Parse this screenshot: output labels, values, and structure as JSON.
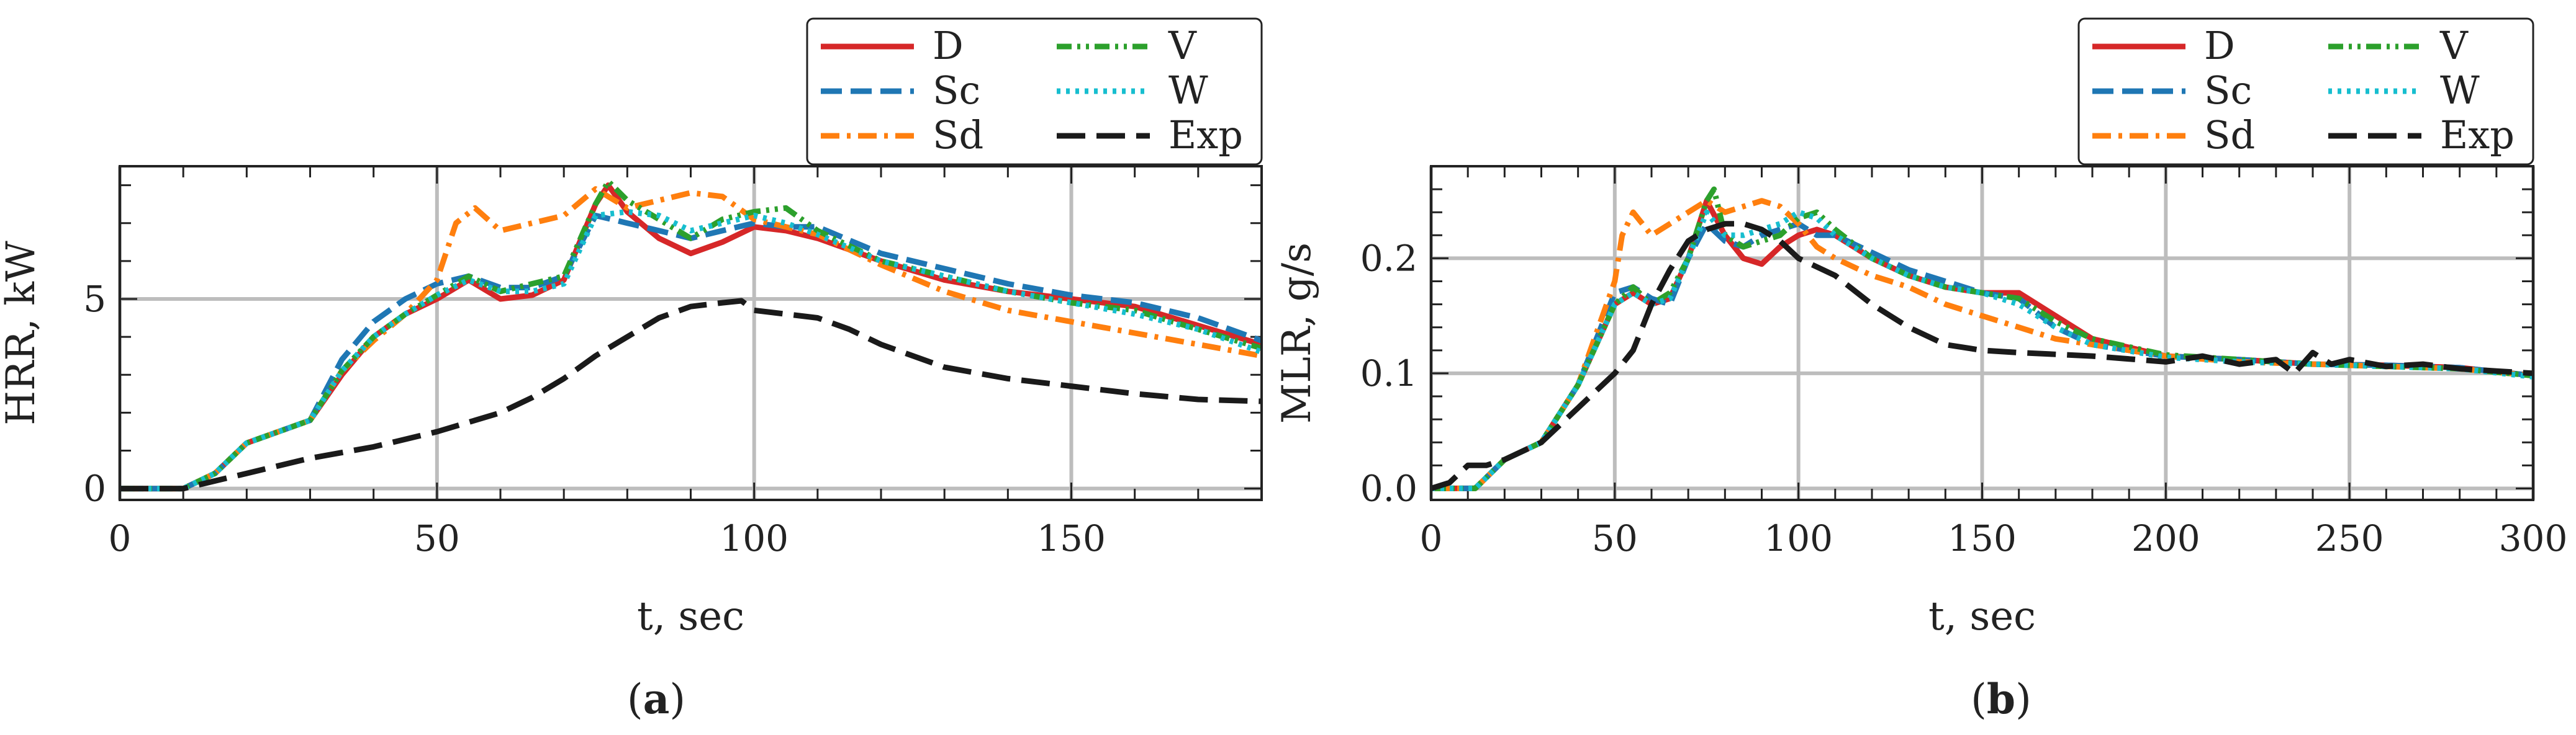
{
  "figure": {
    "panel_labels": [
      "a",
      "b"
    ]
  },
  "chart_data": [
    {
      "type": "line",
      "panel": "a",
      "title": "",
      "xlabel": "t, sec",
      "ylabel": "HRR, kW",
      "xlim": [
        0,
        180
      ],
      "ylim": [
        -0.3,
        8.5
      ],
      "xticks": [
        0,
        50,
        100,
        150
      ],
      "xtick_labels": [
        "0",
        "50",
        "100",
        "150"
      ],
      "yticks": [
        0,
        5
      ],
      "ytick_labels": [
        "0",
        "5"
      ],
      "grid": true,
      "legend_position": "top-right",
      "series": [
        {
          "name": "D",
          "color": "#d62728",
          "dash": "solid",
          "x": [
            0,
            10,
            15,
            20,
            25,
            30,
            35,
            40,
            45,
            50,
            55,
            60,
            65,
            70,
            75,
            77,
            80,
            85,
            90,
            95,
            100,
            105,
            110,
            120,
            130,
            140,
            150,
            160,
            170,
            180
          ],
          "y": [
            0,
            0,
            0.4,
            1.2,
            1.5,
            1.8,
            3.0,
            4.0,
            4.6,
            5.0,
            5.5,
            5.0,
            5.1,
            5.5,
            7.5,
            8.0,
            7.3,
            6.6,
            6.2,
            6.5,
            6.9,
            6.8,
            6.6,
            6.0,
            5.5,
            5.2,
            5.0,
            4.8,
            4.3,
            3.8
          ]
        },
        {
          "name": "Sc",
          "color": "#1f77b4",
          "dash": "dashed",
          "x": [
            0,
            10,
            15,
            20,
            25,
            30,
            35,
            40,
            45,
            50,
            55,
            60,
            65,
            70,
            75,
            80,
            85,
            90,
            95,
            100,
            105,
            110,
            120,
            130,
            140,
            150,
            160,
            170,
            180
          ],
          "y": [
            0,
            0,
            0.4,
            1.2,
            1.5,
            1.8,
            3.4,
            4.4,
            5.0,
            5.4,
            5.6,
            5.3,
            5.3,
            5.6,
            7.2,
            7.0,
            6.8,
            6.6,
            6.8,
            7.0,
            6.9,
            6.9,
            6.2,
            5.8,
            5.4,
            5.1,
            4.9,
            4.5,
            3.9
          ]
        },
        {
          "name": "Sd",
          "color": "#ff7f0e",
          "dash": "dashdot",
          "x": [
            0,
            10,
            15,
            20,
            25,
            30,
            35,
            40,
            45,
            50,
            53,
            56,
            60,
            65,
            70,
            75,
            80,
            85,
            90,
            95,
            100,
            105,
            110,
            120,
            130,
            140,
            150,
            160,
            170,
            180
          ],
          "y": [
            0,
            0,
            0.4,
            1.2,
            1.5,
            1.8,
            3.1,
            3.9,
            4.6,
            5.5,
            7.0,
            7.4,
            6.8,
            7.0,
            7.2,
            7.9,
            7.4,
            7.6,
            7.8,
            7.7,
            7.1,
            6.9,
            6.7,
            5.9,
            5.2,
            4.7,
            4.4,
            4.1,
            3.8,
            3.5
          ]
        },
        {
          "name": "V",
          "color": "#2ca02c",
          "dash": "dashdotdot",
          "x": [
            0,
            10,
            15,
            20,
            25,
            30,
            35,
            40,
            45,
            50,
            55,
            60,
            65,
            70,
            75,
            77,
            80,
            85,
            90,
            95,
            100,
            105,
            110,
            120,
            130,
            140,
            150,
            160,
            170,
            180
          ],
          "y": [
            0,
            0,
            0.4,
            1.2,
            1.5,
            1.8,
            3.1,
            4.0,
            4.6,
            5.1,
            5.6,
            5.2,
            5.4,
            5.6,
            7.5,
            8.1,
            7.6,
            7.1,
            6.6,
            7.1,
            7.3,
            7.4,
            6.8,
            6.0,
            5.6,
            5.2,
            4.9,
            4.7,
            4.2,
            3.7
          ]
        },
        {
          "name": "W",
          "color": "#17becf",
          "dash": "dotted",
          "x": [
            0,
            10,
            15,
            20,
            25,
            30,
            35,
            40,
            45,
            50,
            55,
            60,
            65,
            70,
            75,
            80,
            85,
            90,
            95,
            100,
            105,
            110,
            120,
            130,
            140,
            150,
            160,
            170,
            180
          ],
          "y": [
            0,
            0,
            0.4,
            1.2,
            1.5,
            1.8,
            3.1,
            4.0,
            4.6,
            5.1,
            5.5,
            5.2,
            5.2,
            5.4,
            7.2,
            7.3,
            7.2,
            6.8,
            7.0,
            7.2,
            7.0,
            6.7,
            6.0,
            5.6,
            5.2,
            4.9,
            4.6,
            4.2,
            3.6
          ]
        },
        {
          "name": "Exp",
          "color": "#1a1a1a",
          "dash": "longdash",
          "x": [
            0,
            10,
            15,
            20,
            30,
            40,
            50,
            60,
            65,
            70,
            75,
            80,
            85,
            90,
            95,
            98,
            100,
            105,
            110,
            115,
            120,
            130,
            140,
            150,
            160,
            170,
            180
          ],
          "y": [
            0,
            0,
            0.2,
            0.4,
            0.8,
            1.1,
            1.5,
            2.0,
            2.4,
            2.9,
            3.5,
            4.0,
            4.5,
            4.8,
            4.9,
            4.95,
            4.7,
            4.6,
            4.5,
            4.2,
            3.8,
            3.2,
            2.9,
            2.7,
            2.5,
            2.35,
            2.3
          ]
        }
      ]
    },
    {
      "type": "line",
      "panel": "b",
      "title": "",
      "xlabel": "t, sec",
      "ylabel": "MLR, g/s",
      "xlim": [
        0,
        300
      ],
      "ylim": [
        -0.01,
        0.28
      ],
      "xticks": [
        0,
        50,
        100,
        150,
        200,
        250,
        300
      ],
      "xtick_labels": [
        "0",
        "50",
        "100",
        "150",
        "200",
        "250",
        "300"
      ],
      "yticks": [
        0.0,
        0.1,
        0.2
      ],
      "ytick_labels": [
        "0.0",
        "0.1",
        "0.2"
      ],
      "grid": true,
      "legend_position": "top-right",
      "series": [
        {
          "name": "D",
          "color": "#d62728",
          "dash": "solid",
          "x": [
            0,
            12,
            20,
            30,
            40,
            50,
            55,
            60,
            65,
            70,
            75,
            80,
            85,
            90,
            95,
            100,
            105,
            110,
            120,
            130,
            140,
            150,
            160,
            170,
            180,
            200,
            220,
            240,
            260,
            280,
            300
          ],
          "y": [
            0,
            0,
            0.025,
            0.04,
            0.09,
            0.16,
            0.17,
            0.16,
            0.165,
            0.2,
            0.25,
            0.22,
            0.2,
            0.195,
            0.21,
            0.22,
            0.225,
            0.22,
            0.2,
            0.185,
            0.175,
            0.17,
            0.17,
            0.15,
            0.13,
            0.115,
            0.112,
            0.108,
            0.107,
            0.105,
            0.098
          ]
        },
        {
          "name": "Sc",
          "color": "#1f77b4",
          "dash": "dashed",
          "x": [
            0,
            12,
            20,
            30,
            40,
            50,
            55,
            60,
            65,
            70,
            75,
            80,
            85,
            90,
            95,
            100,
            105,
            110,
            120,
            130,
            140,
            150,
            160,
            170,
            180,
            200,
            220,
            240,
            260,
            280,
            300
          ],
          "y": [
            0,
            0,
            0.025,
            0.04,
            0.09,
            0.17,
            0.175,
            0.165,
            0.16,
            0.2,
            0.23,
            0.215,
            0.21,
            0.22,
            0.225,
            0.23,
            0.22,
            0.22,
            0.205,
            0.19,
            0.18,
            0.17,
            0.165,
            0.14,
            0.125,
            0.115,
            0.112,
            0.108,
            0.107,
            0.105,
            0.098
          ]
        },
        {
          "name": "Sd",
          "color": "#ff7f0e",
          "dash": "dashdot",
          "x": [
            0,
            12,
            20,
            30,
            40,
            50,
            52,
            55,
            60,
            65,
            70,
            75,
            80,
            85,
            90,
            95,
            100,
            105,
            110,
            120,
            130,
            140,
            150,
            160,
            170,
            180,
            200,
            220,
            240,
            260,
            280,
            300
          ],
          "y": [
            0,
            0,
            0.025,
            0.04,
            0.09,
            0.18,
            0.22,
            0.24,
            0.22,
            0.23,
            0.24,
            0.25,
            0.24,
            0.245,
            0.25,
            0.245,
            0.23,
            0.21,
            0.2,
            0.185,
            0.175,
            0.16,
            0.15,
            0.14,
            0.13,
            0.125,
            0.115,
            0.11,
            0.108,
            0.106,
            0.104,
            0.098
          ]
        },
        {
          "name": "V",
          "color": "#2ca02c",
          "dash": "dashdotdot",
          "x": [
            0,
            12,
            20,
            30,
            40,
            50,
            55,
            60,
            65,
            70,
            75,
            77,
            80,
            85,
            90,
            95,
            100,
            105,
            110,
            120,
            130,
            140,
            150,
            160,
            170,
            180,
            200,
            220,
            240,
            260,
            280,
            300
          ],
          "y": [
            0,
            0,
            0.025,
            0.04,
            0.09,
            0.16,
            0.175,
            0.16,
            0.17,
            0.2,
            0.25,
            0.26,
            0.22,
            0.21,
            0.215,
            0.22,
            0.235,
            0.24,
            0.225,
            0.2,
            0.185,
            0.175,
            0.17,
            0.165,
            0.145,
            0.13,
            0.116,
            0.112,
            0.108,
            0.106,
            0.104,
            0.098
          ]
        },
        {
          "name": "W",
          "color": "#17becf",
          "dash": "dotted",
          "x": [
            0,
            12,
            20,
            30,
            40,
            50,
            55,
            60,
            65,
            70,
            75,
            80,
            85,
            90,
            95,
            100,
            105,
            110,
            120,
            130,
            140,
            150,
            160,
            170,
            180,
            200,
            220,
            240,
            260,
            280,
            300
          ],
          "y": [
            0,
            0,
            0.025,
            0.04,
            0.09,
            0.16,
            0.17,
            0.16,
            0.165,
            0.2,
            0.24,
            0.22,
            0.22,
            0.225,
            0.23,
            0.24,
            0.235,
            0.22,
            0.2,
            0.185,
            0.175,
            0.17,
            0.16,
            0.14,
            0.125,
            0.114,
            0.11,
            0.108,
            0.106,
            0.104,
            0.097
          ]
        },
        {
          "name": "Exp",
          "color": "#1a1a1a",
          "dash": "longdash",
          "x": [
            0,
            5,
            10,
            15,
            20,
            30,
            40,
            50,
            55,
            60,
            65,
            70,
            75,
            80,
            85,
            90,
            95,
            100,
            110,
            120,
            130,
            140,
            150,
            160,
            180,
            200,
            210,
            220,
            230,
            235,
            240,
            245,
            250,
            260,
            270,
            280,
            290,
            300
          ],
          "y": [
            0,
            0.005,
            0.02,
            0.02,
            0.025,
            0.04,
            0.07,
            0.1,
            0.12,
            0.16,
            0.19,
            0.215,
            0.225,
            0.23,
            0.23,
            0.225,
            0.215,
            0.2,
            0.185,
            0.16,
            0.14,
            0.125,
            0.12,
            0.118,
            0.115,
            0.11,
            0.115,
            0.108,
            0.112,
            0.1,
            0.118,
            0.108,
            0.112,
            0.106,
            0.108,
            0.104,
            0.102,
            0.1
          ]
        }
      ]
    }
  ]
}
